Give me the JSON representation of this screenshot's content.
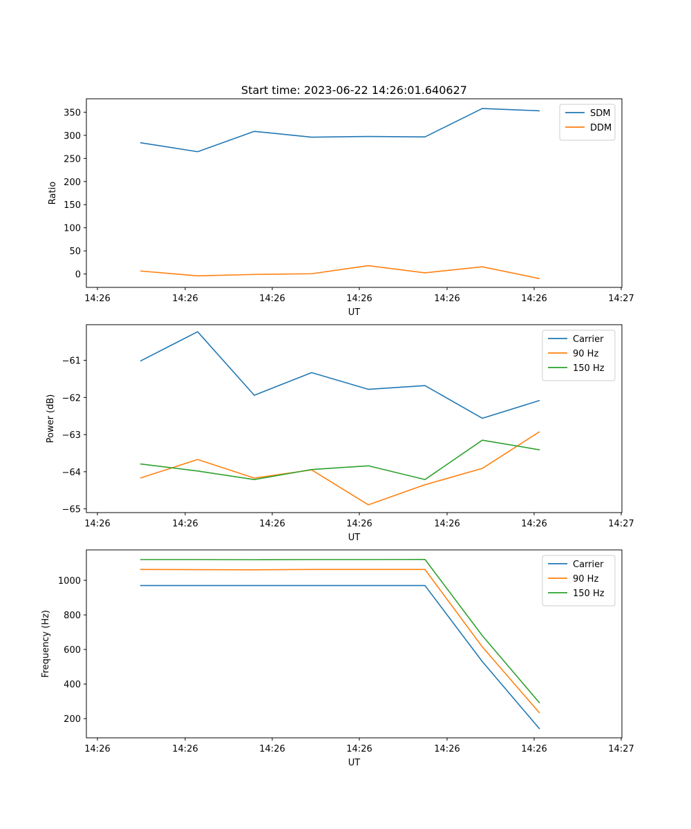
{
  "chart_data": [
    {
      "type": "line",
      "title": "Start time: 2023-06-22 14:26:01.640627",
      "xlabel": "UT",
      "ylabel": "Ratio",
      "x_tick_labels": [
        "14:26",
        "14:26",
        "14:26",
        "14:26",
        "14:26",
        "14:26",
        "14:27"
      ],
      "y_ticks": [
        0,
        50,
        100,
        150,
        200,
        250,
        300,
        350
      ],
      "ylim": [
        -29,
        379
      ],
      "legend_position": "upper right",
      "series": [
        {
          "name": "SDM",
          "color": "#1f77b4",
          "values": [
            284,
            264.5,
            308.5,
            296,
            297.5,
            296.5,
            358,
            353
          ]
        },
        {
          "name": "DDM",
          "color": "#ff7f0e",
          "values": [
            6.5,
            -4,
            -1,
            0.5,
            18,
            2.5,
            15.5,
            -10
          ]
        }
      ]
    },
    {
      "type": "line",
      "title": "",
      "xlabel": "UT",
      "ylabel": "Power (dB)",
      "x_tick_labels": [
        "14:26",
        "14:26",
        "14:26",
        "14:26",
        "14:26",
        "14:26",
        "14:27"
      ],
      "y_ticks": [
        -61,
        -62,
        -63,
        -64,
        -65
      ],
      "ylim": [
        -65.1,
        -60.04
      ],
      "legend_position": "upper right",
      "series": [
        {
          "name": "Carrier",
          "color": "#1f77b4",
          "values": [
            -61.02,
            -60.23,
            -61.94,
            -61.33,
            -61.78,
            -61.68,
            -62.56,
            -62.08
          ]
        },
        {
          "name": "90 Hz",
          "color": "#ff7f0e",
          "values": [
            -64.17,
            -63.67,
            -64.17,
            -63.95,
            -64.89,
            -64.35,
            -63.91,
            -62.92
          ]
        },
        {
          "name": "150 Hz",
          "color": "#2ca02c",
          "values": [
            -63.79,
            -63.98,
            -64.21,
            -63.94,
            -63.84,
            -64.21,
            -63.15,
            -63.41
          ]
        }
      ]
    },
    {
      "type": "line",
      "title": "",
      "xlabel": "UT",
      "ylabel": "Frequency (Hz)",
      "x_tick_labels": [
        "14:26",
        "14:26",
        "14:26",
        "14:26",
        "14:26",
        "14:26",
        "14:27"
      ],
      "y_ticks": [
        200,
        400,
        600,
        800,
        1000
      ],
      "ylim": [
        89,
        1176
      ],
      "legend_position": "upper right",
      "series": [
        {
          "name": "Carrier",
          "color": "#1f77b4",
          "values": [
            970,
            970,
            970,
            970,
            970,
            970,
            530,
            140
          ]
        },
        {
          "name": "90 Hz",
          "color": "#ff7f0e",
          "values": [
            1063,
            1062,
            1061,
            1063,
            1063,
            1063,
            615,
            232
          ]
        },
        {
          "name": "150 Hz",
          "color": "#2ca02c",
          "values": [
            1120,
            1120,
            1119,
            1120,
            1120,
            1121,
            680,
            290
          ]
        }
      ]
    }
  ]
}
